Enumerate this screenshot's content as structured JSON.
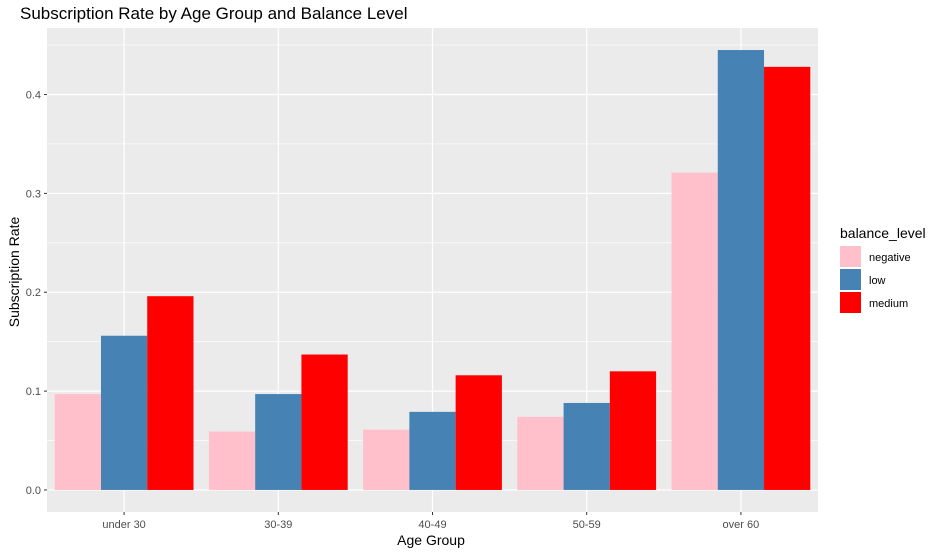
{
  "chart_data": {
    "type": "bar",
    "title": "Subscription Rate by Age Group and Balance Level",
    "xlabel": "Age Group",
    "ylabel": "Subscription Rate",
    "categories": [
      "under 30",
      "30-39",
      "40-49",
      "50-59",
      "over 60"
    ],
    "series": [
      {
        "name": "negative",
        "color": "#FFC0CB",
        "values": [
          0.097,
          0.059,
          0.061,
          0.074,
          0.321
        ]
      },
      {
        "name": "low",
        "color": "#4682B4",
        "values": [
          0.156,
          0.097,
          0.079,
          0.088,
          0.445
        ]
      },
      {
        "name": "medium",
        "color": "#FF0000",
        "values": [
          0.196,
          0.137,
          0.116,
          0.12,
          0.428
        ]
      }
    ],
    "yticks": [
      0.0,
      0.1,
      0.2,
      0.3,
      0.4
    ],
    "ytick_labels": [
      "0.0",
      "0.1",
      "0.2",
      "0.3",
      "0.4"
    ],
    "ylim": [
      -0.0223,
      0.4673
    ],
    "legend_title": "balance_level",
    "legend_position": "right",
    "grid": true,
    "panel_background": "#EBEBEB",
    "grid_color": "#FFFFFF"
  }
}
